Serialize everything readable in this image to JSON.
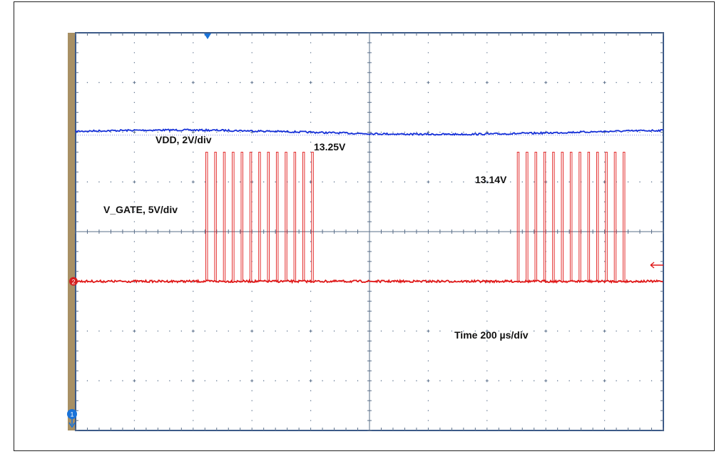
{
  "annotations": {
    "vdd_label": "VDD, 2V/div",
    "vdd_high": "13.25V",
    "vdd_low": "13.14V",
    "vgate_label": "V_GATE, 5V/div",
    "timebase": "Time 200 µs/div"
  },
  "markers": {
    "ch2": "2",
    "ch1": "1"
  },
  "colors": {
    "vdd": "#1530d8",
    "vgate": "#e01818",
    "grid": "#5a6f8a",
    "sidebar": "#a89064",
    "background": "#ffffff"
  },
  "chart_data": {
    "type": "line",
    "title": "",
    "xlabel": "",
    "ylabel": "",
    "grid": true,
    "divisions": {
      "x": 10,
      "y": 8
    },
    "timebase_us_per_div": 200,
    "xlim_us": [
      0,
      2000
    ],
    "series": [
      {
        "name": "VDD",
        "volts_per_div": 2,
        "offset_div": 6.0,
        "baseline_volts": 13.2,
        "high_volts": 13.25,
        "low_volts": 13.14
      },
      {
        "name": "V_GATE",
        "volts_per_div": 5,
        "offset_div": 3.0,
        "low_volts": 0,
        "pulse_high_volts": 13,
        "bursts": [
          {
            "pulse_times_us": [
              443,
              473,
              503,
              533,
              563,
              593,
              623,
              653,
              683,
              713,
              743,
              773,
              803
            ]
          },
          {
            "pulse_times_us": [
              1503,
              1533,
              1563,
              1593,
              1623,
              1653,
              1683,
              1713,
              1743,
              1773,
              1803,
              1833,
              1863
            ]
          }
        ],
        "pulse_width_us": 6
      }
    ]
  }
}
